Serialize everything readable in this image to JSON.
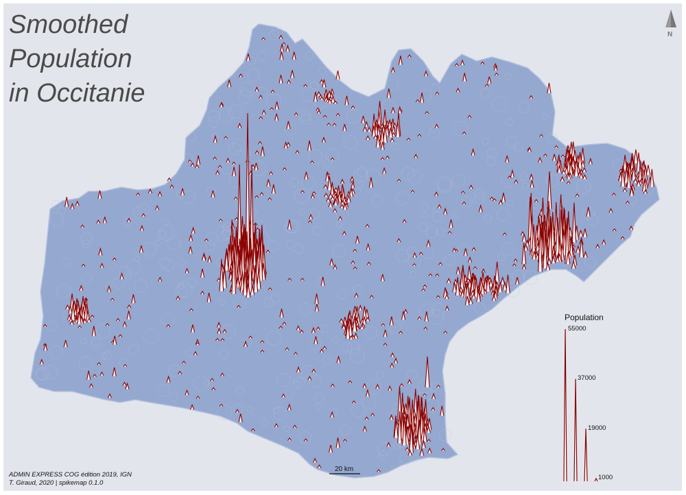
{
  "title": {
    "line1": "Smoothed",
    "line2": "Population",
    "line3": "in Occitanie"
  },
  "credits": {
    "line1": "ADMIN EXPRESS COG édition 2019, IGN",
    "line2": "T. Giraud, 2020 | spikemap 0.1.0"
  },
  "scale_bar": {
    "label": "20 km"
  },
  "north_arrow": {
    "label": "N"
  },
  "legend": {
    "title": "Population",
    "values": [
      {
        "label": "55000",
        "value": 55000
      },
      {
        "label": "37000",
        "value": 37000
      },
      {
        "label": "19000",
        "value": 19000
      },
      {
        "label": "1000",
        "value": 1000
      }
    ]
  },
  "colors": {
    "background": "#e3e5ec",
    "region_fill": "#95a8cf",
    "region_border": "#b3c2df",
    "spike_stroke": "#8b0000",
    "spike_fill": "#ffffff"
  }
}
